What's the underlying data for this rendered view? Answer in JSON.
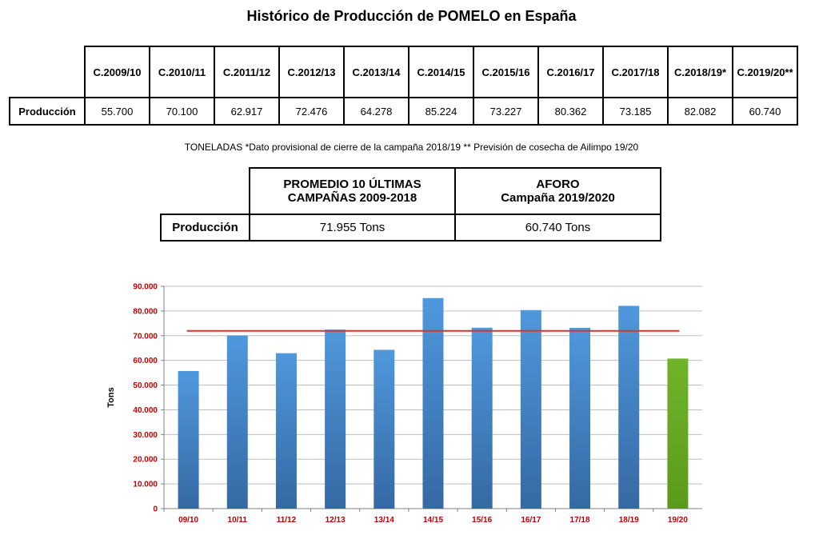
{
  "title": "Histórico de Producción de POMELO en España",
  "production_table": {
    "row_label": "Producción",
    "headers": [
      "C.2009/10",
      "C.2010/11",
      "C.2011/12",
      "C.2012/13",
      "C.2013/14",
      "C.2014/15",
      "C.2015/16",
      "C.2016/17",
      "C.2017/18",
      "C.2018/19*",
      "C.2019/20**"
    ],
    "values": [
      "55.700",
      "70.100",
      "62.917",
      "72.476",
      "64.278",
      "85.224",
      "73.227",
      "80.362",
      "73.185",
      "82.082",
      "60.740"
    ]
  },
  "note": "TONELADAS *Dato provisional de cierre de la campaña 2018/19  ** Previsión de cosecha de Ailimpo 19/20",
  "summary_table": {
    "row_label": "Producción",
    "avg_header_line1": "PROMEDIO 10 ÚLTIMAS",
    "avg_header_line2": "CAMPAÑAS 2009-2018",
    "aforo_header_line1": "AFORO",
    "aforo_header_line2": "Campaña 2019/2020",
    "avg_value": "71.955 Tons",
    "aforo_value": "60.740 Tons"
  },
  "colors": {
    "bar": "#4a8fd0",
    "bar_highlight": "#6aac22",
    "average_line": "#d9342b",
    "tick_label": "#c00000",
    "grid": "#bfbfbf"
  },
  "chart_data": {
    "type": "bar",
    "categories": [
      "09/10",
      "10/11",
      "11/12",
      "12/13",
      "13/14",
      "14/15",
      "15/16",
      "16/17",
      "17/18",
      "18/19",
      "19/20"
    ],
    "values": [
      55700,
      70100,
      62917,
      72476,
      64278,
      85224,
      73227,
      80362,
      73185,
      82082,
      60740
    ],
    "highlight_index": 10,
    "average_line": 71955,
    "ylabel": "Tons",
    "xlabel": "",
    "ylim": [
      0,
      90000
    ],
    "yticks": [
      0,
      10000,
      20000,
      30000,
      40000,
      50000,
      60000,
      70000,
      80000,
      90000
    ],
    "ytick_labels": [
      "0",
      "10.000",
      "20.000",
      "30.000",
      "40.000",
      "50.000",
      "60.000",
      "70.000",
      "80.000",
      "90.000"
    ],
    "grid": true
  }
}
